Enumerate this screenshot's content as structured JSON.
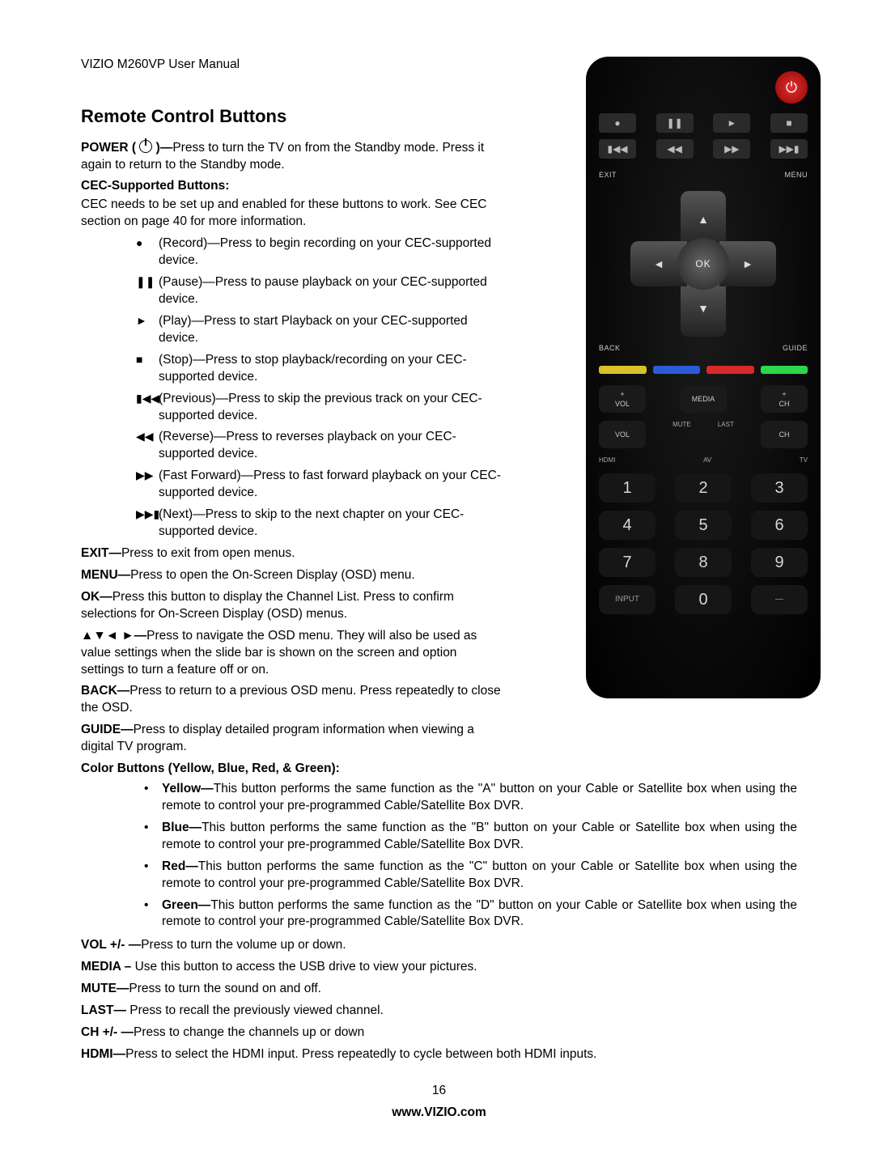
{
  "header": "VIZIO M260VP User Manual",
  "title": "Remote Control Buttons",
  "power": {
    "label": "POWER (",
    "after": " )—",
    "desc": "Press to turn the TV on from the Standby mode. Press it again to return to the Standby mode."
  },
  "cec": {
    "heading": "CEC-Supported Buttons:",
    "intro": "CEC needs to be set up and enabled for these buttons to work. See CEC section on page 40 for more information.",
    "items": [
      {
        "sym": "●",
        "label": "(Record)—",
        "desc": "Press to begin recording on your CEC-supported device."
      },
      {
        "sym": "❚❚",
        "label": "(Pause)—",
        "desc": "Press to pause playback on your CEC-supported device."
      },
      {
        "sym": "►",
        "label": "(Play)—",
        "desc": "Press to start Playback on your CEC-supported device."
      },
      {
        "sym": "■",
        "label": "(Stop)—",
        "desc": "Press to stop playback/recording on your CEC-supported device."
      },
      {
        "sym": "▮◀◀",
        "label": "(Previous)—",
        "desc": "Press to skip the previous track on your CEC-supported device."
      },
      {
        "sym": "◀◀",
        "label": "(Reverse)—",
        "desc": "Press to reverses playback on your CEC-supported device."
      },
      {
        "sym": "▶▶",
        "label": "(Fast Forward)—",
        "desc": "Press to fast forward playback on your CEC-supported device."
      },
      {
        "sym": "▶▶▮",
        "label": "(Next)—",
        "desc": "Press to skip to the next chapter on your CEC-supported device."
      }
    ]
  },
  "entries": [
    {
      "label": "EXIT—",
      "desc": "Press to exit from open menus."
    },
    {
      "label": "MENU—",
      "desc": "Press to open the On-Screen Display (OSD) menu."
    },
    {
      "label": "OK—",
      "desc": "Press this button to display the Channel List. Press to confirm selections for On-Screen Display (OSD) menus."
    },
    {
      "label": "▲▼◄ ►—",
      "desc": "Press to navigate the OSD menu. They will also be used as value settings when the slide bar is shown on the screen and option settings to turn a feature off or on."
    },
    {
      "label": "BACK—",
      "desc": "Press to return to a previous OSD menu. Press repeatedly to close the OSD."
    },
    {
      "label": "GUIDE—",
      "desc": "Press to display detailed program information when viewing a digital TV program."
    }
  ],
  "colorButtons": {
    "heading": "Color Buttons (Yellow, Blue, Red, & Green):",
    "items": [
      {
        "name": "Yellow—",
        "desc": "This button performs the same function as the \"A\" button on your Cable or Satellite box when using the remote to control your pre-programmed Cable/Satellite Box DVR."
      },
      {
        "name": "Blue—",
        "desc": "This button performs the same function as the \"B\" button on your Cable or Satellite box when using the remote to control your pre-programmed Cable/Satellite Box DVR."
      },
      {
        "name": "Red—",
        "desc": "This button performs the same function as the \"C\" button on your Cable or Satellite box when using the remote to control your pre-programmed Cable/Satellite Box DVR."
      },
      {
        "name": "Green—",
        "desc": "This button performs the same function as the \"D\" button on your Cable or Satellite box when using the remote to control your pre-programmed Cable/Satellite Box DVR."
      }
    ]
  },
  "tail": [
    {
      "label": "VOL +/- —",
      "desc": "Press to turn the volume up or down."
    },
    {
      "label": "MEDIA – ",
      "desc": "Use this button to access the USB drive to view your pictures."
    },
    {
      "label": "MUTE—",
      "desc": "Press to turn the sound on and off."
    },
    {
      "label": "LAST— ",
      "desc": "Press to recall the previously viewed channel."
    },
    {
      "label": "CH +/- —",
      "desc": "Press to change the channels up or down"
    },
    {
      "label": "HDMI—",
      "desc": "Press to select the HDMI input. Press repeatedly to cycle between both HDMI inputs."
    }
  ],
  "footer": {
    "page": "16",
    "site": "www.VIZIO.com"
  },
  "remote": {
    "power_color": "#cc2222",
    "row1": [
      "●",
      "❚❚",
      "►",
      "■"
    ],
    "row2": [
      "▮◀◀",
      "◀◀",
      "▶▶",
      "▶▶▮"
    ],
    "corners": {
      "tl": "EXIT",
      "tr": "MENU",
      "bl": "BACK",
      "br": "GUIDE"
    },
    "ok": "OK",
    "color_bar": [
      "#d8c22a",
      "#2a5cd8",
      "#d82a2a",
      "#2ad84a"
    ],
    "vol_plus": "+",
    "vol_lbl": "VOL",
    "media": "MEDIA",
    "ch_plus": "+",
    "ch_lbl": "CH",
    "vol_minus": "VOL",
    "mute": "MUTE",
    "last": "LAST",
    "ch_minus": "CH",
    "srcrow": [
      "HDMI",
      "AV",
      "TV"
    ],
    "numpad": [
      "1",
      "2",
      "3",
      "4",
      "5",
      "6",
      "7",
      "8",
      "9",
      "INPUT",
      "0",
      "—"
    ]
  }
}
